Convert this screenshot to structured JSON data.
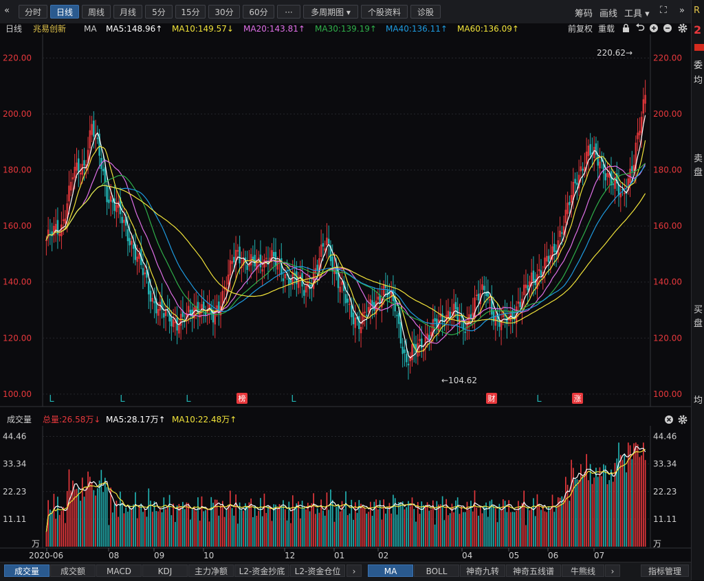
{
  "toolbar": {
    "collapse_glyph": "«",
    "buttons": [
      {
        "label": "分时",
        "active": false
      },
      {
        "label": "日线",
        "active": true
      },
      {
        "label": "周线",
        "active": false
      },
      {
        "label": "月线",
        "active": false
      },
      {
        "label": "5分",
        "active": false
      },
      {
        "label": "15分",
        "active": false
      },
      {
        "label": "30分",
        "active": false
      },
      {
        "label": "60分",
        "active": false
      },
      {
        "label": "···",
        "active": false
      },
      {
        "label": "多周期图 ▾",
        "active": false
      },
      {
        "label": "个股资料",
        "active": false
      },
      {
        "label": "诊股",
        "active": false
      }
    ],
    "right": {
      "chips": "筹码",
      "draw": "画线",
      "tools": "工具 ▾",
      "fullscreen": "⛶",
      "expand": "»"
    }
  },
  "ma_line": {
    "period": "日线",
    "stock_name": "兆易创新",
    "ma_label": "MA",
    "ma5": "MA5:148.96↑",
    "ma10": "MA10:149.57↓",
    "ma20": "MA20:143.81↑",
    "ma30": "MA30:139.19↑",
    "ma40": "MA40:136.11↑",
    "ma60": "MA60:136.09↑",
    "adjust": "前复权",
    "reset": "重载"
  },
  "colors": {
    "up": "#e8383c",
    "down": "#22b5b5",
    "ma5": "#ffffff",
    "ma10": "#f2e43a",
    "ma20": "#e070e8",
    "ma30": "#2fb04a",
    "ma40": "#1e9be0",
    "ma60": "#f2e43a",
    "grid": "#26272c",
    "axis_text": "#e8383c"
  },
  "price_axis": {
    "labels": [
      "220.00",
      "200.00",
      "180.00",
      "160.00",
      "140.00",
      "120.00",
      "100.00"
    ],
    "ticks": [
      220,
      200,
      180,
      160,
      140,
      120,
      100
    ],
    "min": 98,
    "max": 226
  },
  "annotations": {
    "high": "220.62→",
    "low": "←104.62"
  },
  "markers": [
    {
      "text": "L",
      "type": "letter"
    },
    {
      "text": "L",
      "type": "letter"
    },
    {
      "text": "L",
      "type": "letter"
    },
    {
      "text": "榜",
      "type": "badge"
    },
    {
      "text": "L",
      "type": "letter"
    },
    {
      "text": "财",
      "type": "badge"
    },
    {
      "text": "L",
      "type": "letter"
    },
    {
      "text": "涨",
      "type": "badge"
    }
  ],
  "volume_header": {
    "label": "成交量",
    "total": "总量:26.58万↓",
    "ma5": "MA5:28.17万↑",
    "ma10": "MA10:22.48万↑"
  },
  "volume_axis": {
    "labels": [
      "44.46",
      "33.34",
      "22.23",
      "11.11",
      "万"
    ],
    "ticks": [
      44.46,
      33.34,
      22.23,
      11.11,
      0
    ],
    "max": 46
  },
  "date_axis": [
    "2020-06",
    "08",
    "09",
    "10",
    "12",
    "01",
    "02",
    "04",
    "05",
    "06",
    "07"
  ],
  "bottom_tabs": [
    {
      "label": "成交量",
      "active": true
    },
    {
      "label": "成交额",
      "active": false
    },
    {
      "label": "MACD",
      "active": false
    },
    {
      "label": "KDJ",
      "active": false
    },
    {
      "label": "主力净额",
      "active": false
    },
    {
      "label": "L2-资金抄底",
      "active": false
    },
    {
      "label": "L2-资金仓位",
      "active": false
    },
    {
      "label": "›",
      "active": false
    },
    {
      "label": "MA",
      "active": true
    },
    {
      "label": "BOLL",
      "active": false
    },
    {
      "label": "神奇九转",
      "active": false
    },
    {
      "label": "神奇五线谱",
      "active": false
    },
    {
      "label": "牛熊线",
      "active": false
    },
    {
      "label": "›",
      "active": false
    },
    {
      "label": "指标管理",
      "active": false
    }
  ],
  "right_panel": [
    "R",
    "2",
    "委",
    "均",
    "卖",
    "盘",
    "买",
    "盘",
    "均"
  ]
}
